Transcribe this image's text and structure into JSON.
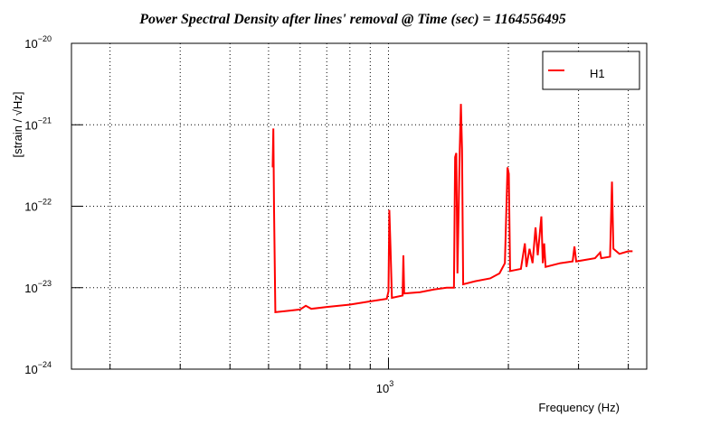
{
  "chart_data": {
    "type": "line",
    "title": "Power Spectral Density after lines' removal @ Time (sec) = 1164556495",
    "x_label": "Frequency (Hz)",
    "y_label": "[strain / √Hz]",
    "log_x": true,
    "log_y": true,
    "grid": true,
    "legend": "top-right",
    "xlim": [
      160,
      4450
    ],
    "ylim": [
      1e-24,
      1e-20
    ],
    "xticks": [
      {
        "value": 1000,
        "label": "10",
        "exponent": "3"
      }
    ],
    "xminor_ticks": [
      200,
      300,
      400,
      500,
      600,
      700,
      800,
      900,
      2000,
      3000,
      4000
    ],
    "yticks": [
      {
        "value": 1e-24,
        "label": "10",
        "exponent": "−24"
      },
      {
        "value": 1e-23,
        "label": "10",
        "exponent": "−23"
      },
      {
        "value": 1e-22,
        "label": "10",
        "exponent": "−22"
      },
      {
        "value": 1e-21,
        "label": "10",
        "exponent": "−21"
      },
      {
        "value": 1e-20,
        "label": "10",
        "exponent": "−20"
      }
    ],
    "series": [
      {
        "name": "H1",
        "color": "#ff0000",
        "x": [
          512,
          514,
          516,
          520,
          560,
          600,
          620,
          640,
          700,
          800,
          900,
          990,
          1000,
          1005,
          1012,
          1020,
          1085,
          1090,
          1095,
          1200,
          1300,
          1400,
          1460,
          1470,
          1480,
          1490,
          1510,
          1520,
          1530,
          1540,
          1650,
          1800,
          1900,
          1960,
          1990,
          2005,
          2020,
          2150,
          2200,
          2220,
          2260,
          2300,
          2340,
          2370,
          2420,
          2440,
          2460,
          2480,
          2700,
          2900,
          2930,
          2960,
          3300,
          3400,
          3420,
          3600,
          3640,
          3670,
          3800,
          4000,
          4100
        ],
        "values": [
          3e-22,
          9e-22,
          1e-22,
          5e-24,
          5.2e-24,
          5.4e-24,
          6e-24,
          5.5e-24,
          5.8e-24,
          6.2e-24,
          6.8e-24,
          7.3e-24,
          9e-24,
          9e-23,
          3e-23,
          7.5e-24,
          8e-24,
          2.5e-23,
          8.5e-24,
          8.8e-24,
          9.5e-24,
          1e-23,
          1e-23,
          4e-22,
          4.5e-22,
          1.5e-23,
          5e-22,
          1.8e-21,
          5e-22,
          1.1e-23,
          1.2e-23,
          1.3e-23,
          1.5e-23,
          2e-23,
          3e-22,
          2.5e-22,
          1.6e-23,
          1.7e-23,
          3.5e-23,
          1.8e-23,
          3e-23,
          2e-23,
          5.5e-23,
          2.5e-23,
          7.5e-23,
          2e-23,
          3.5e-23,
          1.8e-23,
          2e-23,
          2.1e-23,
          3.2e-23,
          2.1e-23,
          2.3e-23,
          2.7e-23,
          2.3e-23,
          2.4e-23,
          2e-22,
          3e-23,
          2.6e-23,
          2.8e-23,
          2.8e-23
        ]
      }
    ]
  }
}
